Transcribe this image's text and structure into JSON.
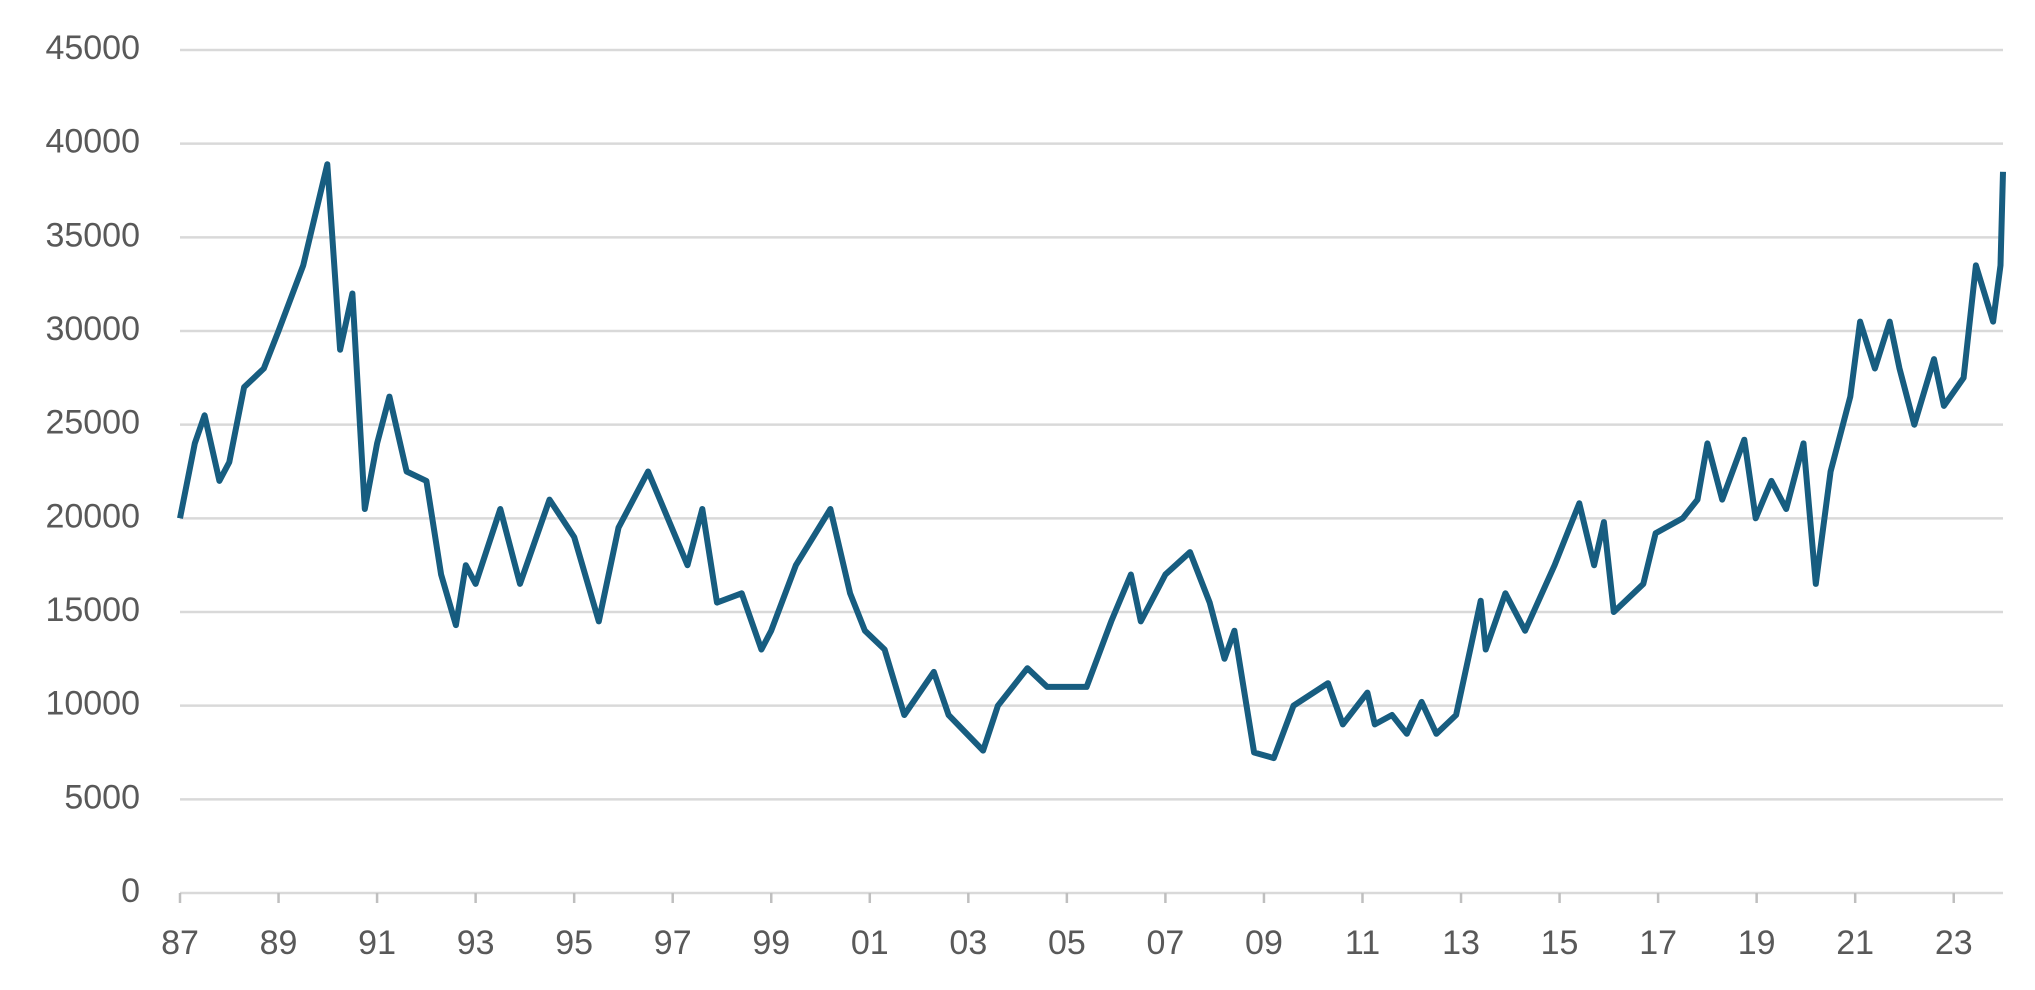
{
  "chart_data": {
    "type": "line",
    "x": [
      1987.0,
      1987.3,
      1987.5,
      1987.8,
      1988.0,
      1988.3,
      1988.7,
      1989.0,
      1989.5,
      1989.99,
      1990.25,
      1990.5,
      1990.75,
      1991.0,
      1991.25,
      1991.6,
      1992.0,
      1992.3,
      1992.6,
      1992.8,
      1993.0,
      1993.5,
      1993.9,
      1994.5,
      1995.0,
      1995.5,
      1995.9,
      1996.5,
      1996.9,
      1997.3,
      1997.6,
      1997.9,
      1998.4,
      1998.8,
      1999.0,
      1999.5,
      2000.2,
      2000.6,
      2000.9,
      2001.3,
      2001.7,
      2002.3,
      2002.6,
      2003.3,
      2003.6,
      2004.2,
      2004.6,
      2005.4,
      2005.9,
      2006.3,
      2006.5,
      2007.0,
      2007.5,
      2007.9,
      2008.2,
      2008.4,
      2008.8,
      2009.2,
      2009.6,
      2010.3,
      2010.6,
      2011.1,
      2011.25,
      2011.6,
      2011.9,
      2012.2,
      2012.5,
      2012.9,
      2013.4,
      2013.5,
      2013.9,
      2014.3,
      2014.9,
      2015.4,
      2015.7,
      2015.9,
      2016.1,
      2016.7,
      2016.95,
      2017.5,
      2017.8,
      2018.0,
      2018.3,
      2018.75,
      2018.98,
      2019.3,
      2019.6,
      2019.95,
      2020.2,
      2020.5,
      2020.9,
      2021.1,
      2021.4,
      2021.7,
      2021.9,
      2022.2,
      2022.6,
      2022.8,
      2023.2,
      2023.45,
      2023.8,
      2023.95,
      2024.0
    ],
    "values": [
      20000,
      24000,
      25500,
      22000,
      23000,
      27000,
      28000,
      30000,
      33500,
      38900,
      29000,
      32000,
      20500,
      24000,
      26500,
      22500,
      22000,
      17000,
      14300,
      17500,
      16500,
      20500,
      16500,
      21000,
      19000,
      14500,
      19500,
      22500,
      20000,
      17500,
      20500,
      15500,
      16000,
      13000,
      14000,
      17500,
      20500,
      16000,
      14000,
      13000,
      9500,
      11800,
      9500,
      7600,
      10000,
      12000,
      11000,
      11000,
      14500,
      17000,
      14500,
      17000,
      18200,
      15500,
      12500,
      14000,
      7500,
      7200,
      10000,
      11200,
      9000,
      10700,
      9000,
      9500,
      8500,
      10200,
      8500,
      9500,
      15600,
      13000,
      16000,
      14000,
      17500,
      20800,
      17500,
      19800,
      15000,
      16500,
      19200,
      20000,
      21000,
      24000,
      21000,
      24200,
      20000,
      22000,
      20500,
      24000,
      16500,
      22500,
      26500,
      30500,
      28000,
      30500,
      28000,
      25000,
      28500,
      26000,
      27500,
      33500,
      30500,
      33500,
      38500
    ],
    "color": "#175d80",
    "xlim": [
      1987,
      2024
    ],
    "xticks": [
      {
        "value": 1987,
        "label": "87"
      },
      {
        "value": 1989,
        "label": "89"
      },
      {
        "value": 1991,
        "label": "91"
      },
      {
        "value": 1993,
        "label": "93"
      },
      {
        "value": 1995,
        "label": "95"
      },
      {
        "value": 1997,
        "label": "97"
      },
      {
        "value": 1999,
        "label": "99"
      },
      {
        "value": 2001,
        "label": "01"
      },
      {
        "value": 2003,
        "label": "03"
      },
      {
        "value": 2005,
        "label": "05"
      },
      {
        "value": 2007,
        "label": "07"
      },
      {
        "value": 2009,
        "label": "09"
      },
      {
        "value": 2011,
        "label": "11"
      },
      {
        "value": 2013,
        "label": "13"
      },
      {
        "value": 2015,
        "label": "15"
      },
      {
        "value": 2017,
        "label": "17"
      },
      {
        "value": 2019,
        "label": "19"
      },
      {
        "value": 2021,
        "label": "21"
      },
      {
        "value": 2023,
        "label": "23"
      }
    ],
    "ylim": [
      0,
      45000
    ],
    "yticks": [
      0,
      5000,
      10000,
      15000,
      20000,
      25000,
      30000,
      35000,
      40000,
      45000
    ],
    "grid": true
  }
}
